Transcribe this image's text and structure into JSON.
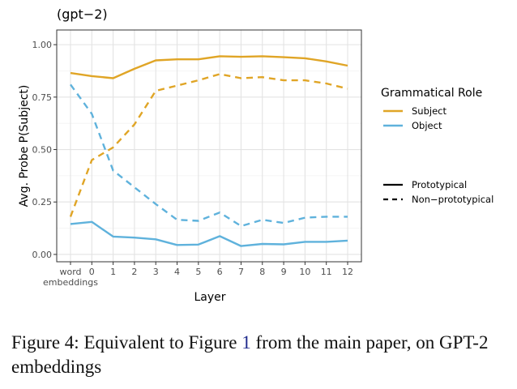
{
  "chart_data": {
    "type": "line",
    "title": "(gpt−2)",
    "xlabel": "Layer",
    "ylabel": "Avg. Probe P(Subject)",
    "categories": [
      "word embeddings",
      "0",
      "1",
      "2",
      "3",
      "4",
      "5",
      "6",
      "7",
      "8",
      "9",
      "10",
      "11",
      "12"
    ],
    "x_tick_labels": [
      [
        "word",
        "embeddings"
      ],
      [
        "0"
      ],
      [
        "1"
      ],
      [
        "2"
      ],
      [
        "3"
      ],
      [
        "4"
      ],
      [
        "5"
      ],
      [
        "6"
      ],
      [
        "7"
      ],
      [
        "8"
      ],
      [
        "9"
      ],
      [
        "10"
      ],
      [
        "11"
      ],
      [
        "12"
      ]
    ],
    "ylim": [
      -0.035,
      1.07
    ],
    "yticks": [
      0.0,
      0.25,
      0.5,
      0.75,
      1.0
    ],
    "ytick_labels": [
      "0.00",
      "0.25",
      "0.50",
      "0.75",
      "1.00"
    ],
    "grid": true,
    "legend_position": "right",
    "legend": {
      "color_title": "Grammatical Role",
      "color_entries": [
        {
          "label": "Subject",
          "color": "#e0a526"
        },
        {
          "label": "Object",
          "color": "#5fb2dc"
        }
      ],
      "linetype_entries": [
        {
          "label": "Prototypical",
          "style": "solid"
        },
        {
          "label": "Non−prototypical",
          "style": "dashed"
        }
      ]
    },
    "series": [
      {
        "role": "Subject",
        "type": "Prototypical",
        "style": "solid",
        "color": "#e0a526",
        "values": [
          0.865,
          0.85,
          0.84,
          0.885,
          0.925,
          0.93,
          0.93,
          0.945,
          0.942,
          0.945,
          0.94,
          0.935,
          0.92,
          0.9
        ]
      },
      {
        "role": "Subject",
        "type": "Non−prototypical",
        "style": "dashed",
        "color": "#e0a526",
        "values": [
          0.18,
          0.45,
          0.51,
          0.62,
          0.78,
          0.805,
          0.83,
          0.86,
          0.84,
          0.845,
          0.83,
          0.83,
          0.815,
          0.79
        ]
      },
      {
        "role": "Object",
        "type": "Prototypical",
        "style": "solid",
        "color": "#5fb2dc",
        "values": [
          0.145,
          0.155,
          0.085,
          0.08,
          0.072,
          0.045,
          0.047,
          0.087,
          0.04,
          0.05,
          0.048,
          0.06,
          0.06,
          0.066
        ]
      },
      {
        "role": "Object",
        "type": "Non−prototypical",
        "style": "dashed",
        "color": "#5fb2dc",
        "values": [
          0.81,
          0.67,
          0.4,
          0.32,
          0.24,
          0.165,
          0.16,
          0.2,
          0.135,
          0.165,
          0.15,
          0.175,
          0.18,
          0.18
        ]
      }
    ]
  },
  "caption": {
    "prefix": "Figure 4: Equivalent to Figure",
    "ref": "1",
    "suffix": "from the main paper, on GPT-2 embeddings"
  }
}
